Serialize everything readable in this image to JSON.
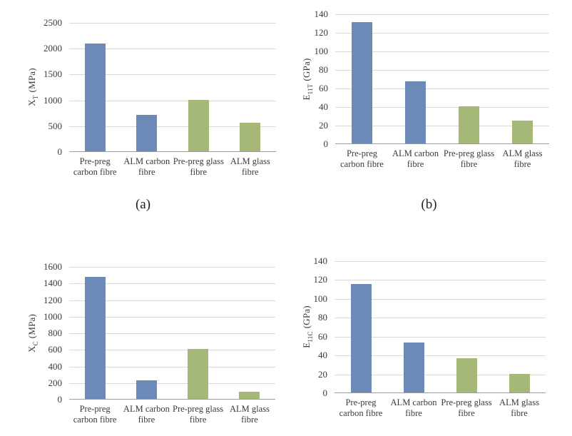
{
  "colors": {
    "palette": {
      "carbon_blue": "#6b8ab8",
      "glass_green": "#a5b877"
    },
    "gridline": "#d9d9d9",
    "axis": "#9c9c9c",
    "text": "#3b3b3b",
    "background": "#ffffff"
  },
  "chart_data": [
    {
      "type": "bar",
      "panel": "a",
      "caption": "(a)",
      "ylabel": {
        "base": "X",
        "sub": "T",
        "unit": "(MPa)"
      },
      "ylim": [
        0,
        2500
      ],
      "yticks": [
        0,
        500,
        1000,
        1500,
        2000,
        2500
      ],
      "categories": [
        "Pre-preg carbon fibre",
        "ALM carbon fibre",
        "Pre-preg glass fibre",
        "ALM glass fibre"
      ],
      "values": [
        2080,
        700,
        1000,
        550
      ],
      "bar_colors": [
        "carbon_blue",
        "carbon_blue",
        "glass_green",
        "glass_green"
      ],
      "grid": true,
      "legend": "none"
    },
    {
      "type": "bar",
      "panel": "b",
      "caption": "(b)",
      "ylabel": {
        "base": "E",
        "sub": "11T",
        "unit": "(GPa)"
      },
      "ylim": [
        0,
        140
      ],
      "yticks": [
        0,
        20,
        40,
        60,
        80,
        100,
        120,
        140
      ],
      "categories": [
        "Pre-preg carbon fibre",
        "ALM carbon fibre",
        "Pre-preg glass fibre",
        "ALM glass fibre"
      ],
      "values": [
        131,
        67,
        40,
        25
      ],
      "bar_colors": [
        "carbon_blue",
        "carbon_blue",
        "glass_green",
        "glass_green"
      ],
      "grid": true,
      "legend": "none"
    },
    {
      "type": "bar",
      "panel": "c",
      "ylabel": {
        "base": "X",
        "sub": "C",
        "unit": "(MPa)"
      },
      "ylim": [
        0,
        1600
      ],
      "yticks": [
        0,
        200,
        400,
        600,
        800,
        1000,
        1200,
        1400,
        1600
      ],
      "categories": [
        "Pre-preg carbon fibre",
        "ALM carbon fibre",
        "Pre-preg glass fibre",
        "ALM glass fibre"
      ],
      "values": [
        1470,
        225,
        600,
        85
      ],
      "bar_colors": [
        "carbon_blue",
        "carbon_blue",
        "glass_green",
        "glass_green"
      ],
      "grid": true,
      "legend": "none"
    },
    {
      "type": "bar",
      "panel": "d",
      "ylabel": {
        "base": "E",
        "sub": "11C",
        "unit": "(GPa)"
      },
      "ylim": [
        0,
        140
      ],
      "yticks": [
        0,
        20,
        40,
        60,
        80,
        100,
        120,
        140
      ],
      "categories": [
        "Pre-preg carbon fibre",
        "ALM carbon fibre",
        "Pre-preg glass fibre",
        "ALM glass fibre"
      ],
      "values": [
        115,
        53,
        36,
        20
      ],
      "bar_colors": [
        "carbon_blue",
        "carbon_blue",
        "glass_green",
        "glass_green"
      ],
      "grid": true,
      "legend": "none"
    }
  ]
}
